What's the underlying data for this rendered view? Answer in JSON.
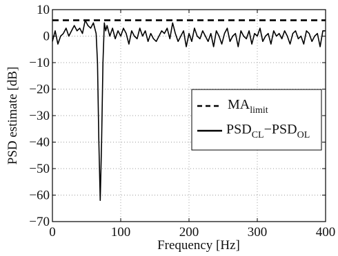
{
  "chart_data": {
    "type": "line",
    "title": "",
    "xlabel": "Frequency [Hz]",
    "ylabel": "PSD estimate [dB]",
    "xlim": [
      0,
      400
    ],
    "ylim": [
      -70,
      10
    ],
    "xticks": [
      0,
      100,
      200,
      300,
      400
    ],
    "yticks": [
      10,
      0,
      -10,
      -20,
      -30,
      -40,
      -50,
      -60,
      -70
    ],
    "grid": true,
    "legend_position": "right",
    "legend": [
      {
        "main": "MA",
        "sub": "limit",
        "style": "dashed"
      },
      {
        "main": "PSD",
        "sub": "CL",
        "joiner": "−",
        "main2": "PSD",
        "sub2": "OL",
        "style": "solid"
      }
    ],
    "series": [
      {
        "style": "dashed",
        "x": [
          0,
          400
        ],
        "y": [
          6,
          6
        ]
      },
      {
        "style": "solid",
        "x": [
          0,
          4,
          8,
          12,
          16,
          20,
          24,
          28,
          32,
          36,
          40,
          44,
          48,
          52,
          56,
          60,
          64,
          66,
          68,
          70,
          72,
          74,
          76,
          78,
          80,
          84,
          88,
          92,
          96,
          100,
          104,
          108,
          112,
          116,
          120,
          124,
          128,
          132,
          136,
          140,
          144,
          148,
          152,
          156,
          160,
          164,
          168,
          172,
          176,
          180,
          184,
          188,
          192,
          196,
          200,
          204,
          208,
          212,
          216,
          220,
          224,
          228,
          232,
          236,
          240,
          244,
          248,
          252,
          256,
          260,
          264,
          268,
          272,
          276,
          280,
          284,
          288,
          292,
          296,
          300,
          304,
          308,
          312,
          316,
          320,
          324,
          328,
          332,
          336,
          340,
          344,
          348,
          352,
          356,
          360,
          364,
          368,
          372,
          376,
          380,
          384,
          388,
          392,
          396,
          400
        ],
        "y": [
          -2,
          2,
          -3,
          0,
          1,
          3,
          0,
          2,
          4,
          2,
          3,
          1,
          6,
          4,
          3,
          5,
          1,
          -10,
          -40,
          -62,
          -40,
          -10,
          5,
          2,
          4,
          0,
          3,
          -1,
          2,
          0,
          3,
          1,
          -3,
          2,
          0,
          -1,
          3,
          0,
          2,
          -2,
          1,
          -1,
          -2,
          0,
          2,
          1,
          3,
          -1,
          5,
          1,
          -2,
          0,
          2,
          -4,
          1,
          -2,
          3,
          0,
          -1,
          2,
          0,
          -2,
          1,
          -4,
          2,
          0,
          -3,
          1,
          3,
          -2,
          0,
          1,
          -4,
          2,
          0,
          -1,
          2,
          -3,
          1,
          0,
          3,
          -2,
          0,
          1,
          -3,
          2,
          0,
          1,
          -1,
          2,
          0,
          -3,
          1,
          2,
          -1,
          0,
          -3,
          2,
          1,
          -2,
          0,
          1,
          -4,
          2,
          2
        ]
      }
    ]
  }
}
